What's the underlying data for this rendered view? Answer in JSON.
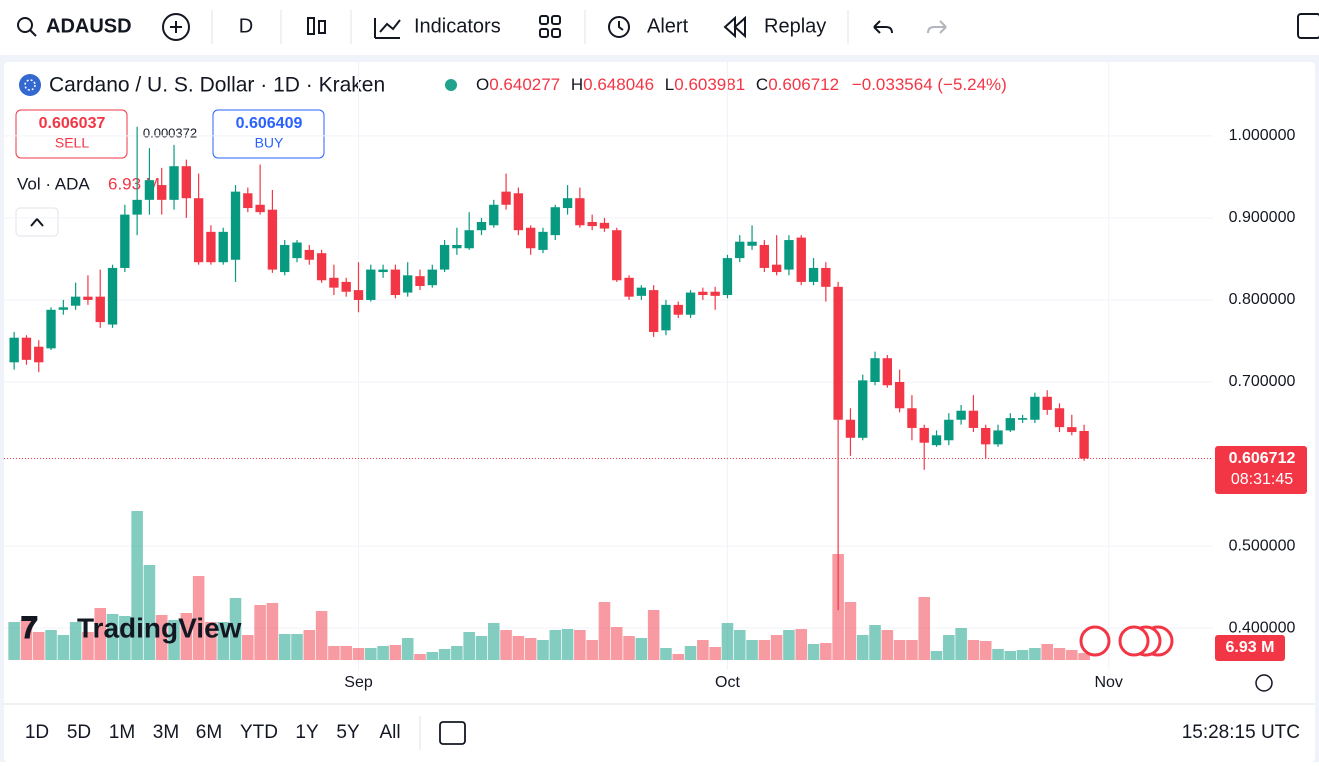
{
  "toolbar": {
    "symbol": "ADAUSD",
    "interval": "D",
    "indicators": "Indicators",
    "alert": "Alert",
    "replay": "Replay"
  },
  "legend": {
    "title": "Cardano / U. S. Dollar · 1D · Kraken",
    "open_prefix": "O",
    "high_prefix": "H",
    "low_prefix": "L",
    "close_prefix": "C",
    "change": "−0.033564 (−5.24%)",
    "volume_title": "Vol · ADA"
  },
  "trade": {
    "sell_price": 0.606037,
    "sell": "SELL",
    "spread": 0.000372,
    "buy_price": 0.606409,
    "buy": "BUY"
  },
  "countdown": "08:31:45",
  "logo": "TradingView",
  "range_buttons": [
    "1D",
    "5D",
    "1M",
    "3M",
    "6M",
    "YTD",
    "1Y",
    "5Y",
    "All"
  ],
  "clock": "15:28:15 UTC",
  "chart_data": {
    "type": "candlestick",
    "categories": [
      null,
      null,
      null,
      null,
      null,
      null,
      null,
      null,
      null,
      null,
      null,
      null,
      null,
      null,
      null,
      null,
      null,
      null,
      null,
      null,
      null,
      null,
      null,
      null,
      null,
      null,
      null,
      null,
      "Sep",
      null,
      null,
      null,
      null,
      null,
      null,
      null,
      null,
      null,
      null,
      null,
      null,
      null,
      null,
      null,
      null,
      null,
      null,
      null,
      null,
      null,
      null,
      null,
      null,
      null,
      null,
      null,
      null,
      null,
      "Oct",
      null,
      null,
      null,
      null,
      null,
      null,
      null,
      null,
      null,
      null,
      null,
      null,
      null,
      null,
      null,
      null,
      null,
      null,
      null,
      null,
      null,
      null,
      null,
      null,
      null,
      null,
      null,
      null,
      null,
      null,
      "Nov"
    ],
    "open": [
      0.724,
      0.754,
      0.743,
      0.741,
      0.788,
      0.793,
      0.804,
      0.804,
      0.77,
      0.839,
      0.904,
      0.922,
      0.94,
      0.922,
      0.963,
      0.924,
      0.883,
      0.846,
      0.849,
      0.93,
      0.916,
      0.91,
      0.834,
      0.851,
      0.861,
      0.857,
      0.827,
      0.822,
      0.812,
      0.8,
      0.834,
      0.837,
      0.809,
      0.829,
      0.818,
      0.837,
      0.863,
      0.863,
      0.885,
      0.891,
      0.932,
      0.93,
      0.888,
      0.861,
      0.879,
      0.912,
      0.924,
      0.895,
      0.894,
      0.885,
      0.827,
      0.805,
      0.812,
      0.763,
      0.794,
      0.782,
      0.81,
      0.81,
      0.806,
      0.851,
      0.866,
      0.867,
      0.843,
      0.837,
      0.876,
      0.822,
      0.839,
      0.816,
      0.654,
      0.632,
      0.7,
      0.729,
      0.7,
      0.668,
      0.644,
      0.623,
      0.629,
      0.654,
      0.665,
      0.644,
      0.624,
      0.641,
      0.654,
      0.654,
      0.682,
      0.668,
      0.645,
      0.640277,
      null,
      null
    ],
    "high": [
      0.761,
      0.757,
      0.751,
      0.791,
      0.8,
      0.821,
      0.83,
      0.837,
      0.843,
      0.916,
      1.011,
      0.985,
      0.961,
      0.989,
      0.971,
      0.954,
      0.891,
      0.888,
      0.94,
      0.937,
      0.965,
      0.934,
      0.873,
      0.873,
      0.867,
      0.861,
      0.843,
      0.827,
      0.846,
      0.843,
      0.843,
      0.843,
      0.846,
      0.837,
      0.843,
      0.873,
      0.888,
      0.907,
      0.9,
      0.922,
      0.954,
      0.937,
      0.891,
      0.888,
      0.916,
      0.94,
      0.937,
      0.904,
      0.9,
      0.888,
      0.83,
      0.818,
      0.818,
      0.8,
      0.798,
      0.812,
      0.815,
      0.816,
      0.855,
      0.879,
      0.891,
      0.873,
      0.879,
      0.879,
      0.879,
      0.851,
      0.846,
      0.822,
      0.668,
      0.709,
      0.737,
      0.733,
      0.715,
      0.684,
      0.648,
      0.641,
      0.662,
      0.672,
      0.684,
      0.648,
      0.648,
      0.662,
      0.66,
      0.687,
      0.69,
      0.674,
      0.66,
      0.648046,
      null,
      null
    ],
    "low": [
      0.715,
      0.721,
      0.712,
      0.739,
      0.782,
      0.788,
      0.794,
      0.766,
      0.766,
      0.834,
      0.879,
      0.904,
      0.904,
      0.91,
      0.9,
      0.843,
      0.843,
      0.843,
      0.822,
      0.907,
      0.904,
      0.833,
      0.83,
      0.846,
      0.843,
      0.821,
      0.806,
      0.804,
      0.785,
      0.798,
      0.827,
      0.802,
      0.804,
      0.812,
      0.815,
      0.834,
      0.855,
      0.861,
      0.879,
      0.888,
      0.91,
      0.879,
      0.855,
      0.857,
      0.873,
      0.904,
      0.888,
      0.885,
      0.883,
      0.822,
      0.8,
      0.8,
      0.755,
      0.757,
      0.778,
      0.778,
      0.8,
      0.788,
      0.802,
      0.846,
      0.861,
      0.834,
      0.83,
      0.83,
      0.818,
      0.818,
      0.798,
      0.422,
      0.61,
      0.629,
      0.696,
      0.693,
      0.663,
      0.629,
      0.593,
      0.621,
      0.623,
      0.648,
      0.639,
      0.607,
      0.621,
      0.639,
      0.65,
      0.65,
      0.66,
      0.639,
      0.635,
      0.603981,
      null,
      null
    ],
    "close": [
      0.754,
      0.727,
      0.724,
      0.788,
      0.791,
      0.804,
      0.8,
      0.773,
      0.839,
      0.904,
      0.922,
      0.946,
      0.922,
      0.963,
      0.924,
      0.846,
      0.846,
      0.883,
      0.932,
      0.912,
      0.907,
      0.837,
      0.867,
      0.87,
      0.849,
      0.824,
      0.815,
      0.81,
      0.8,
      0.837,
      0.837,
      0.806,
      0.83,
      0.817,
      0.837,
      0.867,
      0.867,
      0.885,
      0.895,
      0.916,
      0.916,
      0.885,
      0.863,
      0.883,
      0.913,
      0.924,
      0.891,
      0.89,
      0.887,
      0.824,
      0.804,
      0.815,
      0.761,
      0.794,
      0.782,
      0.809,
      0.806,
      0.805,
      0.851,
      0.871,
      0.871,
      0.839,
      0.834,
      0.873,
      0.822,
      0.839,
      0.816,
      0.654,
      0.632,
      0.702,
      0.729,
      0.696,
      0.668,
      0.644,
      0.626,
      0.635,
      0.654,
      0.665,
      0.644,
      0.624,
      0.641,
      0.656,
      0.656,
      0.682,
      0.666,
      0.645,
      0.639,
      0.606712,
      null,
      null
    ],
    "volume": [
      38000000,
      40000000,
      28000000,
      30000000,
      25000000,
      38000000,
      28000000,
      52000000,
      46000000,
      44000000,
      149000000,
      95000000,
      45000000,
      40000000,
      47000000,
      84000000,
      38000000,
      38000000,
      62000000,
      25000000,
      55000000,
      57000000,
      26000000,
      26000000,
      30000000,
      49000000,
      14000000,
      14000000,
      12000000,
      12000000,
      14000000,
      15000000,
      22000000,
      6000000,
      8000000,
      11000000,
      14000000,
      28000000,
      24000000,
      37000000,
      30000000,
      24000000,
      22000000,
      20000000,
      30000000,
      31000000,
      30000000,
      20000000,
      58000000,
      33000000,
      24000000,
      22000000,
      50000000,
      12000000,
      6000000,
      14000000,
      20000000,
      13000000,
      37000000,
      30000000,
      20000000,
      20000000,
      25000000,
      30000000,
      31000000,
      16000000,
      17000000,
      106000000,
      58000000,
      25000000,
      35000000,
      30000000,
      20000000,
      20000000,
      63000000,
      9000000,
      25000000,
      32000000,
      20000000,
      19000000,
      11000000,
      9000000,
      10000000,
      12000000,
      16000000,
      12000000,
      10000000,
      6930000,
      null,
      null
    ],
    "volume_label": "6.93 M",
    "up_color": "#089981",
    "down_color": "#f23645",
    "ylim": [
      0.349,
      1.09
    ],
    "yticks": [
      {
        "value": 0.4,
        "label": "0.400000"
      },
      {
        "value": 0.5,
        "label": "0.500000"
      },
      {
        "value": 0.7,
        "label": "0.700000"
      },
      {
        "value": 0.8,
        "label": "0.800000"
      },
      {
        "value": 0.9,
        "label": "0.900000"
      },
      {
        "value": 1.0,
        "label": "1.000000"
      }
    ],
    "grid": true
  }
}
